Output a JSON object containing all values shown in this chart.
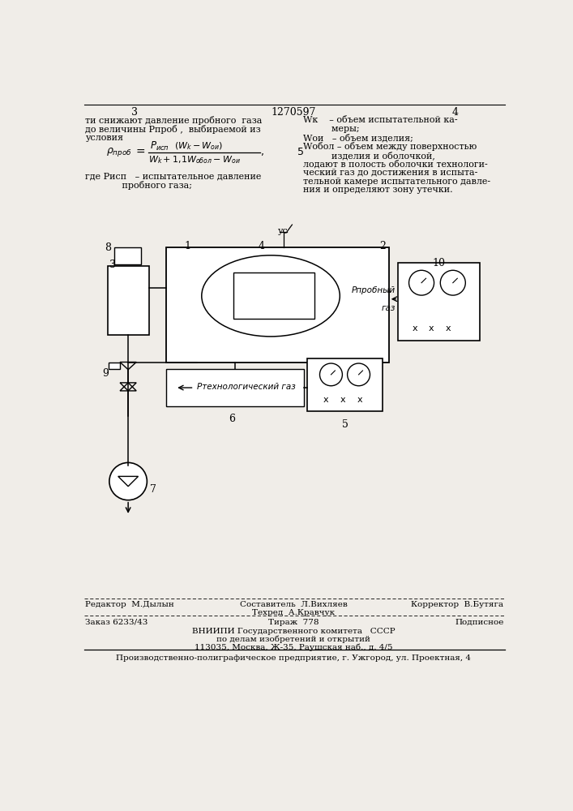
{
  "bg_color": "#f0ede8",
  "title_center": "1270597",
  "page_left": "3",
  "page_right": "4",
  "text_left_lines": [
    "ти снижают давление пробного  газа",
    "до величины Pпроб ,  выбираемой из",
    "условия"
  ],
  "text_right_lines": [
    "Wк    – объем испытательной ка-",
    "          меры;",
    "Wои   – объем изделия;",
    "Wобол – объем между поверхностью",
    "          изделия и оболочкой,",
    "лодают в полость оболочки технологи-",
    "ческий газ до достижения в испыта-",
    "тельной камере испытательного давле-",
    "ния и определяют зону утечки."
  ],
  "where_text": [
    "где Pисп   – испытательное давление",
    "             пробного газа;"
  ],
  "label_ptech": "Pтехнологический газ",
  "label_pprob_line1": "Pпробный",
  "label_pprob_line2": "газ",
  "label_ус": "ус",
  "footer_editor": "Редактор  М.Дылын",
  "footer_composer": "Составитель  Л.Вихляев",
  "footer_corrector": "Корректор  В.Бутяга",
  "footer_techred": "Техред  А.Кравчук",
  "footer_order": "Заказ 6233/43",
  "footer_tirazh": "Тираж  778",
  "footer_podp": "Подписное",
  "footer_vniip1": "ВНИИПИ Государственного комитета   СССР",
  "footer_vniip2": "по делам изобретений и открытий",
  "footer_vniip3": "113035, Москва, Ж-35, Раушская наб., д. 4/5",
  "footer_prod": "Производственно-полиграфическое предприятие, г. Ужгород, ул. Проектная, 4"
}
